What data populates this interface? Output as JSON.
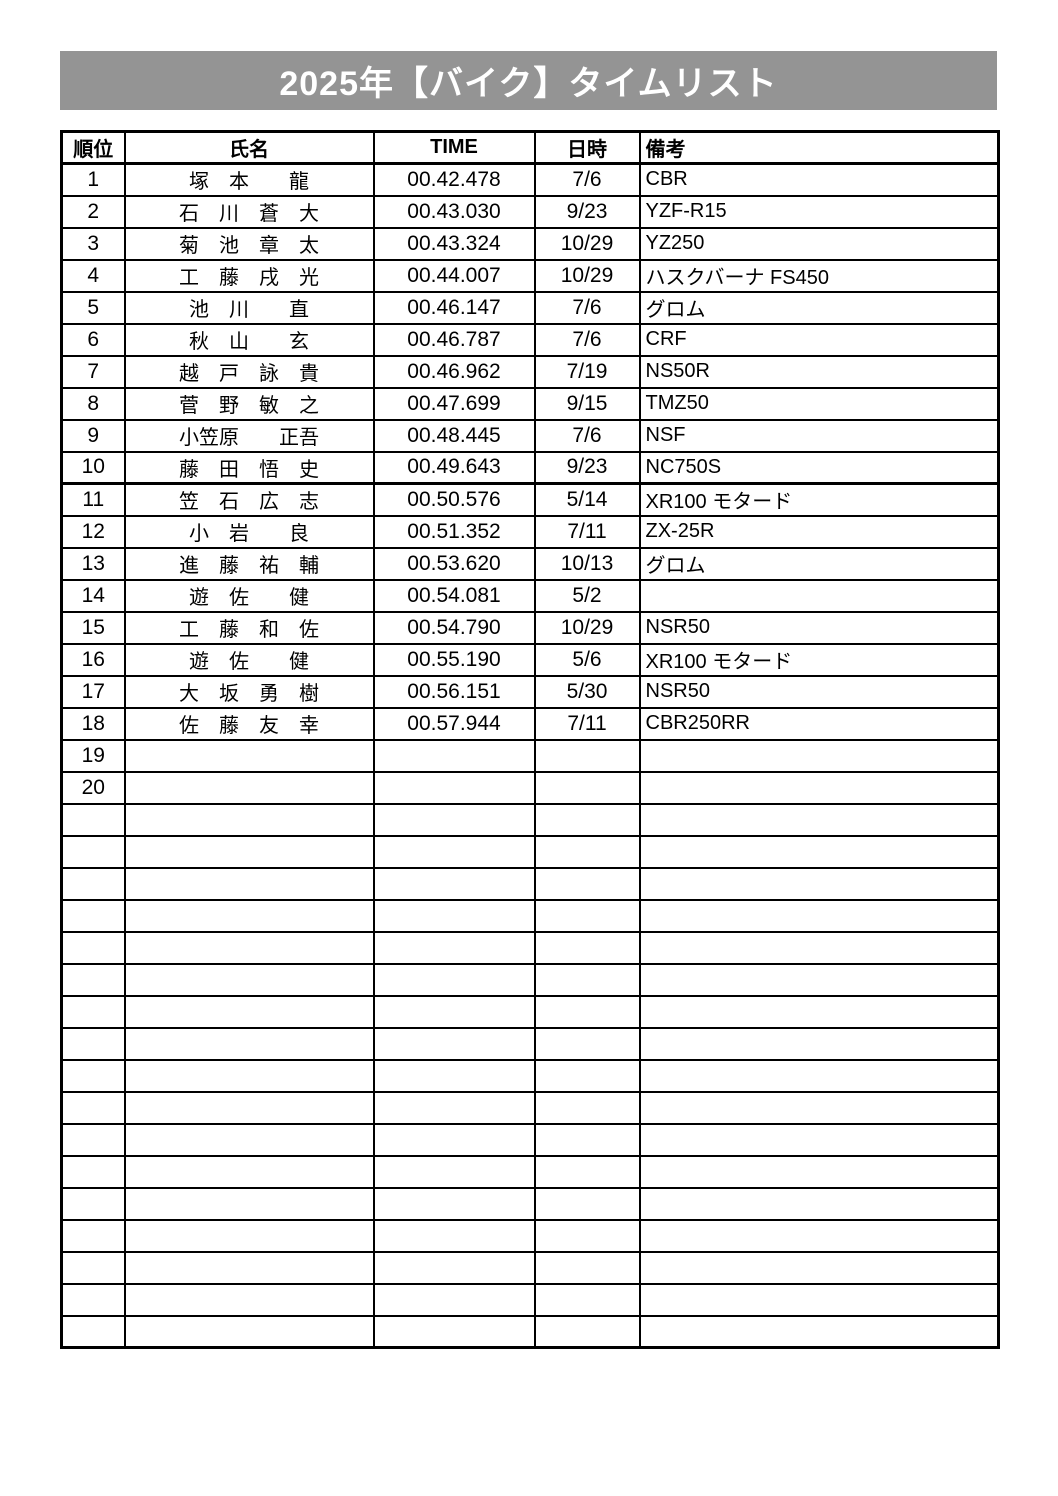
{
  "title": "2025年【バイク】タイムリスト",
  "colors": {
    "title_bg": "#949494",
    "title_text": "#ffffff",
    "border": "#000000",
    "page_bg": "#ffffff"
  },
  "table": {
    "headers": [
      "順位",
      "氏名",
      "TIME",
      "日時",
      "備考"
    ],
    "rows": [
      {
        "rank": "1",
        "name": "塚　本　　龍",
        "time": "00.42.478",
        "date": "7/6",
        "note": "CBR"
      },
      {
        "rank": "2",
        "name": "石　川　蒼　大",
        "time": "00.43.030",
        "date": "9/23",
        "note": "YZF-R15"
      },
      {
        "rank": "3",
        "name": "菊　池　章　太",
        "time": "00.43.324",
        "date": "10/29",
        "note": "YZ250"
      },
      {
        "rank": "4",
        "name": "工　藤　戌　光",
        "time": "00.44.007",
        "date": "10/29",
        "note": "ハスクバーナ FS450"
      },
      {
        "rank": "5",
        "name": "池　川　　直",
        "time": "00.46.147",
        "date": "7/6",
        "note": "グロム"
      },
      {
        "rank": "6",
        "name": "秋　山　　玄",
        "time": "00.46.787",
        "date": "7/6",
        "note": "CRF"
      },
      {
        "rank": "7",
        "name": "越　戸　詠　貴",
        "time": "00.46.962",
        "date": "7/19",
        "note": "NS50R"
      },
      {
        "rank": "8",
        "name": "菅　野　敏　之",
        "time": "00.47.699",
        "date": "9/15",
        "note": "TMZ50"
      },
      {
        "rank": "9",
        "name": "小笠原　　正吾",
        "time": "00.48.445",
        "date": "7/6",
        "note": "NSF"
      },
      {
        "rank": "10",
        "name": "藤　田　悟　史",
        "time": "00.49.643",
        "date": "9/23",
        "note": "NC750S"
      },
      {
        "rank": "11",
        "name": "笠　石　広　志",
        "time": "00.50.576",
        "date": "5/14",
        "note": "XR100 モタード"
      },
      {
        "rank": "12",
        "name": "小　岩　　良",
        "time": "00.51.352",
        "date": "7/11",
        "note": "ZX-25R"
      },
      {
        "rank": "13",
        "name": "進　藤　祐　輔",
        "time": "00.53.620",
        "date": "10/13",
        "note": "グロム"
      },
      {
        "rank": "14",
        "name": "遊　佐　　健",
        "time": "00.54.081",
        "date": "5/2",
        "note": ""
      },
      {
        "rank": "15",
        "name": "工　藤　和　佐",
        "time": "00.54.790",
        "date": "10/29",
        "note": "NSR50"
      },
      {
        "rank": "16",
        "name": "遊　佐　　健",
        "time": "00.55.190",
        "date": "5/6",
        "note": "XR100 モタード"
      },
      {
        "rank": "17",
        "name": "大　坂　勇　樹",
        "time": "00.56.151",
        "date": "5/30",
        "note": "NSR50"
      },
      {
        "rank": "18",
        "name": "佐　藤　友　幸",
        "time": "00.57.944",
        "date": "7/11",
        "note": "CBR250RR"
      },
      {
        "rank": "19",
        "name": "",
        "time": "",
        "date": "",
        "note": ""
      },
      {
        "rank": "20",
        "name": "",
        "time": "",
        "date": "",
        "note": ""
      },
      {
        "rank": "",
        "name": "",
        "time": "",
        "date": "",
        "note": ""
      },
      {
        "rank": "",
        "name": "",
        "time": "",
        "date": "",
        "note": ""
      },
      {
        "rank": "",
        "name": "",
        "time": "",
        "date": "",
        "note": ""
      },
      {
        "rank": "",
        "name": "",
        "time": "",
        "date": "",
        "note": ""
      },
      {
        "rank": "",
        "name": "",
        "time": "",
        "date": "",
        "note": ""
      },
      {
        "rank": "",
        "name": "",
        "time": "",
        "date": "",
        "note": ""
      },
      {
        "rank": "",
        "name": "",
        "time": "",
        "date": "",
        "note": ""
      },
      {
        "rank": "",
        "name": "",
        "time": "",
        "date": "",
        "note": ""
      },
      {
        "rank": "",
        "name": "",
        "time": "",
        "date": "",
        "note": ""
      },
      {
        "rank": "",
        "name": "",
        "time": "",
        "date": "",
        "note": ""
      },
      {
        "rank": "",
        "name": "",
        "time": "",
        "date": "",
        "note": ""
      },
      {
        "rank": "",
        "name": "",
        "time": "",
        "date": "",
        "note": ""
      },
      {
        "rank": "",
        "name": "",
        "time": "",
        "date": "",
        "note": ""
      },
      {
        "rank": "",
        "name": "",
        "time": "",
        "date": "",
        "note": ""
      },
      {
        "rank": "",
        "name": "",
        "time": "",
        "date": "",
        "note": ""
      },
      {
        "rank": "",
        "name": "",
        "time": "",
        "date": "",
        "note": ""
      },
      {
        "rank": "",
        "name": "",
        "time": "",
        "date": "",
        "note": ""
      }
    ]
  }
}
